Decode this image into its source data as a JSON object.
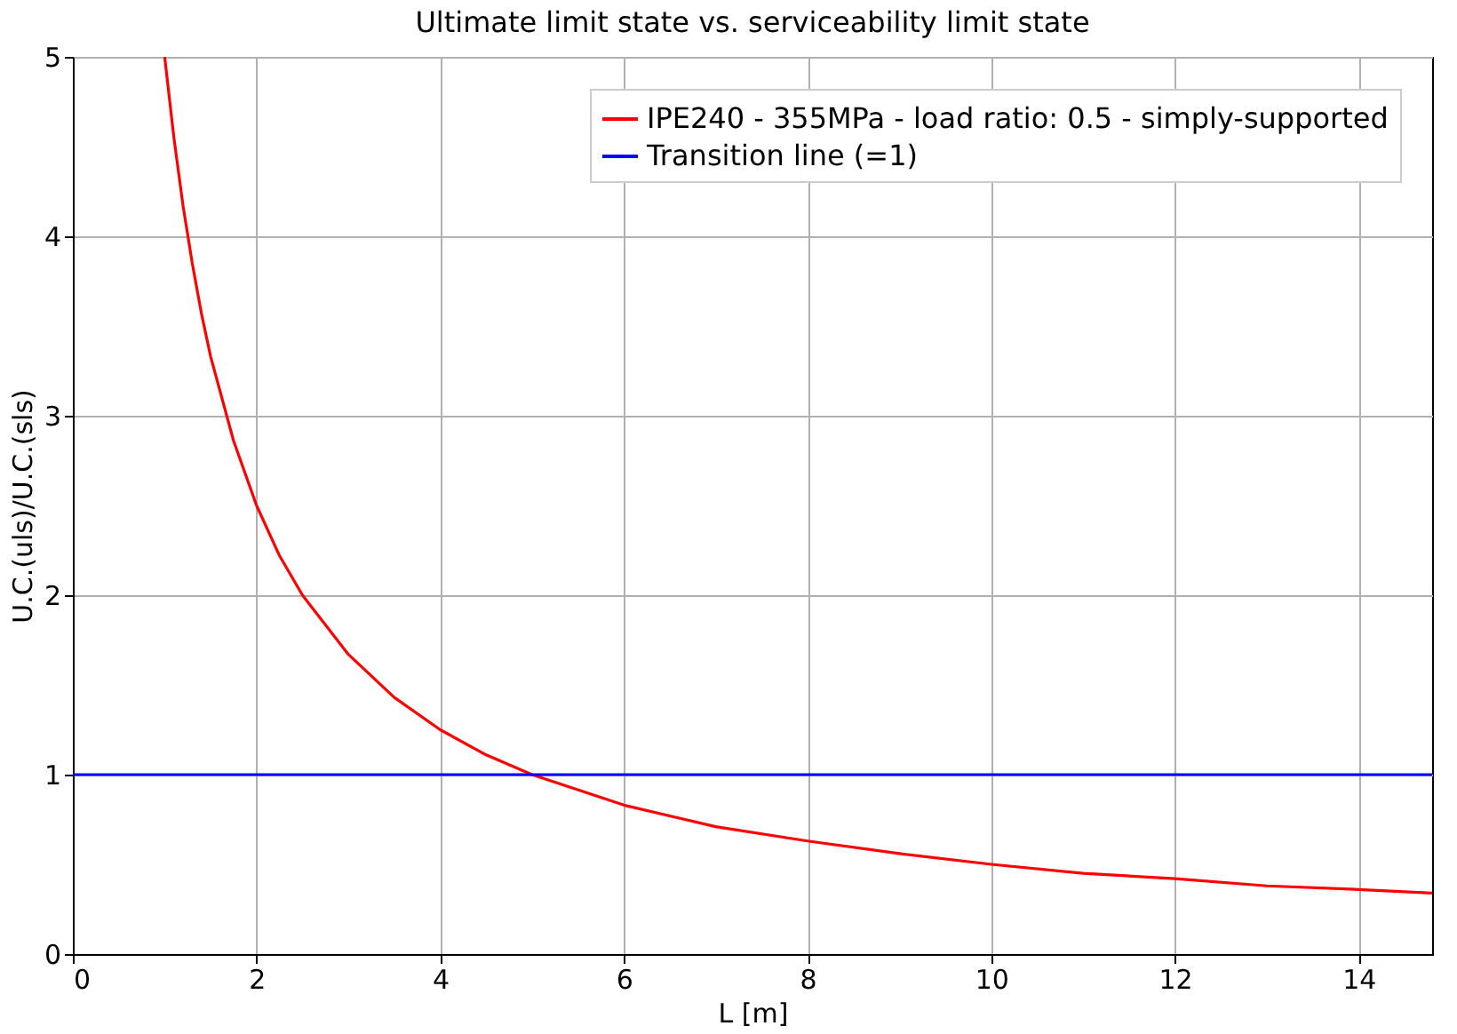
{
  "chart_data": {
    "type": "line",
    "title": "Ultimate limit state vs. serviceability limit state",
    "xlabel": "L [m]",
    "ylabel": "U.C.(uls)/U.C.(sls)",
    "xlim": [
      0,
      14.8
    ],
    "ylim": [
      0,
      5
    ],
    "xticks": [
      0,
      2,
      4,
      6,
      8,
      10,
      12,
      14
    ],
    "yticks": [
      0,
      1,
      2,
      3,
      4,
      5
    ],
    "grid": true,
    "legend": "top right",
    "series": [
      {
        "name": "IPE240 - 355MPa - load ratio: 0.5 - simply-supported",
        "color": "#ff0000",
        "x": [
          1.0,
          1.1,
          1.2,
          1.3,
          1.4,
          1.5,
          1.75,
          2,
          2.25,
          2.5,
          3,
          3.5,
          4,
          4.5,
          5,
          6,
          7,
          8,
          9,
          10,
          11,
          12,
          13,
          14,
          14.8
        ],
        "values": [
          5,
          4.55,
          4.17,
          3.85,
          3.57,
          3.33,
          2.86,
          2.5,
          2.22,
          2,
          1.67,
          1.43,
          1.25,
          1.11,
          1,
          0.83,
          0.71,
          0.63,
          0.56,
          0.5,
          0.45,
          0.42,
          0.38,
          0.36,
          0.34
        ]
      },
      {
        "name": "Transition line (=1)",
        "color": "#0000ff",
        "x": [
          0,
          14.8
        ],
        "values": [
          1,
          1
        ]
      }
    ]
  }
}
